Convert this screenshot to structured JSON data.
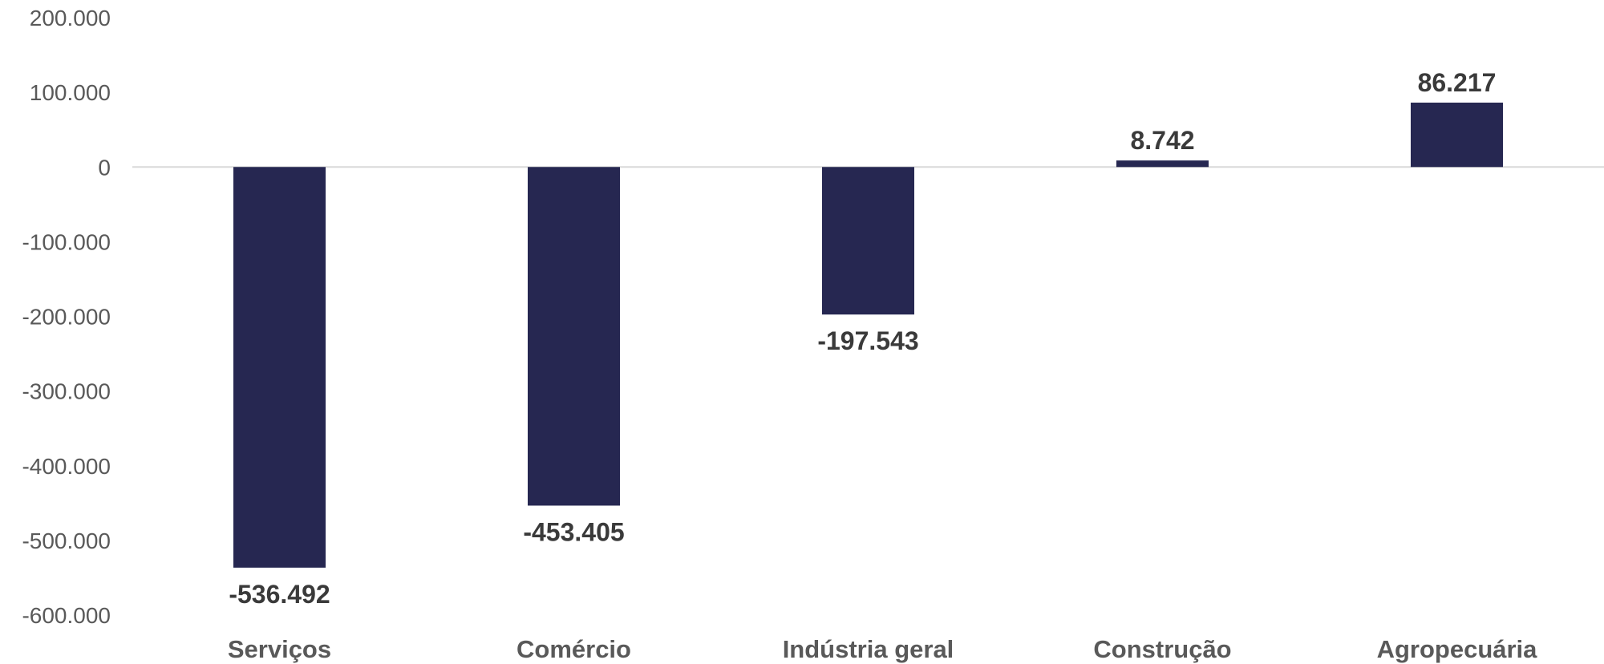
{
  "chart_data": {
    "type": "bar",
    "categories": [
      "Serviços",
      "Comércio",
      "Indústria geral",
      "Construção",
      "Agropecuária"
    ],
    "values": [
      -536492,
      -453405,
      -197543,
      8742,
      86217
    ],
    "value_labels": [
      "-536.492",
      "-453.405",
      "-197.543",
      "8.742",
      "86.217"
    ],
    "ylim": [
      -600000,
      200000
    ],
    "yticks": [
      200000,
      100000,
      0,
      -100000,
      -200000,
      -300000,
      -400000,
      -500000,
      -600000
    ],
    "ytick_labels": [
      "200.000",
      "100.000",
      "0",
      "-100.000",
      "-200.000",
      "-300.000",
      "-400.000",
      "-500.000",
      "-600.000"
    ],
    "grid": false,
    "bar_color": "#262751",
    "zero_line_color": "#d9d9d9"
  }
}
